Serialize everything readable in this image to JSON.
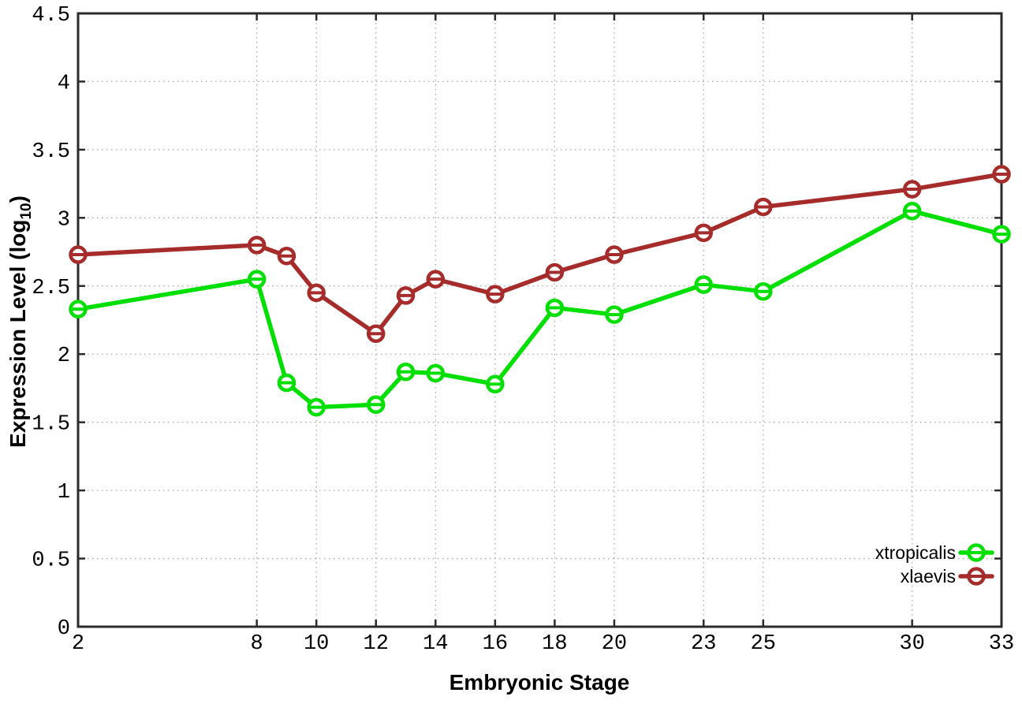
{
  "figure": {
    "xlabel": "Embryonic Stage",
    "ylabel_prefix": "Expression Level (log",
    "ylabel_sub": "10",
    "ylabel_suffix": ")"
  },
  "chart_data": {
    "type": "line",
    "title": "",
    "xlabel": "Embryonic Stage",
    "ylabel": "Expression Level (log10)",
    "x": [
      2,
      8,
      9,
      10,
      12,
      13,
      14,
      16,
      18,
      20,
      23,
      25,
      30,
      33
    ],
    "series": [
      {
        "name": "xtropicalis",
        "color": "#00df00",
        "values": [
          2.33,
          2.55,
          1.79,
          1.61,
          1.63,
          1.87,
          1.86,
          1.78,
          2.34,
          2.29,
          2.51,
          2.46,
          3.05,
          2.88
        ]
      },
      {
        "name": "xlaevis",
        "color": "#a62b2b",
        "values": [
          2.73,
          2.8,
          2.72,
          2.45,
          2.15,
          2.43,
          2.55,
          2.44,
          2.6,
          2.73,
          2.89,
          3.08,
          3.21,
          3.32
        ]
      }
    ],
    "xlim": [
      2,
      33
    ],
    "ylim": [
      0,
      4.5
    ],
    "xticks": [
      2,
      8,
      10,
      12,
      14,
      16,
      18,
      20,
      23,
      25,
      30,
      33
    ],
    "yticks": [
      0,
      0.5,
      1,
      1.5,
      2,
      2.5,
      3,
      3.5,
      4,
      4.5
    ],
    "grid": true,
    "legend_position": "inside-bottom-right",
    "legend_order": [
      "xtropicalis",
      "xlaevis"
    ]
  },
  "style_colors": {
    "border": "#2b2b2b",
    "grid": "#a8a8a8",
    "tick_text": "#000000",
    "background": "#ffffff"
  }
}
